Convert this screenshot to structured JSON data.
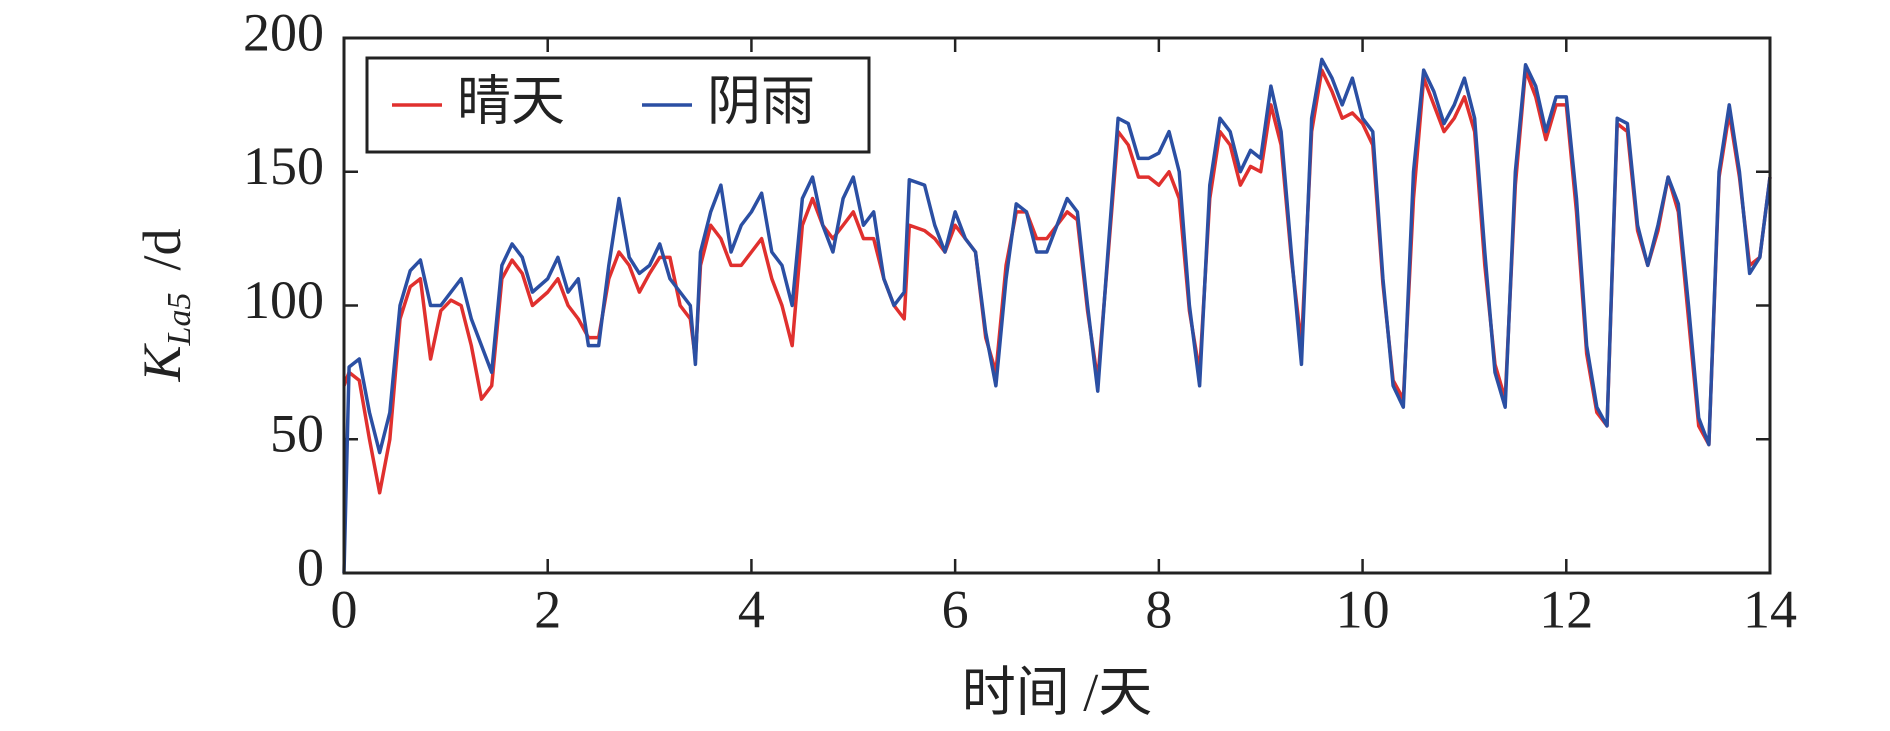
{
  "chart_data": {
    "type": "line",
    "x_label": "时间 /天",
    "y_label": {
      "symbol": "K",
      "subscript": "La5",
      "unit": "/d"
    },
    "legend": "top-left",
    "grid": false,
    "xlim": [
      0,
      14
    ],
    "xticks": [
      0,
      2,
      4,
      6,
      8,
      10,
      12,
      14
    ],
    "ylim": [
      0,
      200
    ],
    "yticks": [
      0,
      50,
      100,
      150,
      200
    ],
    "x": [
      0,
      0.05,
      0.15,
      0.25,
      0.35,
      0.45,
      0.55,
      0.65,
      0.75,
      0.85,
      0.95,
      1.05,
      1.15,
      1.25,
      1.35,
      1.45,
      1.55,
      1.65,
      1.75,
      1.85,
      2.0,
      2.1,
      2.2,
      2.3,
      2.4,
      2.5,
      2.6,
      2.7,
      2.8,
      2.9,
      3.0,
      3.1,
      3.2,
      3.3,
      3.4,
      3.45,
      3.5,
      3.6,
      3.7,
      3.8,
      3.9,
      4.0,
      4.1,
      4.2,
      4.3,
      4.4,
      4.5,
      4.6,
      4.7,
      4.8,
      4.9,
      5.0,
      5.1,
      5.2,
      5.3,
      5.4,
      5.5,
      5.55,
      5.7,
      5.8,
      5.9,
      6.0,
      6.1,
      6.2,
      6.3,
      6.4,
      6.5,
      6.6,
      6.7,
      6.8,
      6.9,
      7.0,
      7.1,
      7.2,
      7.3,
      7.4,
      7.5,
      7.6,
      7.7,
      7.8,
      7.9,
      8.0,
      8.1,
      8.2,
      8.3,
      8.4,
      8.5,
      8.6,
      8.7,
      8.8,
      8.9,
      9.0,
      9.1,
      9.2,
      9.3,
      9.4,
      9.5,
      9.6,
      9.7,
      9.8,
      9.9,
      10.0,
      10.1,
      10.2,
      10.3,
      10.4,
      10.5,
      10.6,
      10.7,
      10.8,
      10.9,
      11.0,
      11.1,
      11.2,
      11.3,
      11.4,
      11.5,
      11.6,
      11.7,
      11.8,
      11.9,
      12.0,
      12.1,
      12.2,
      12.3,
      12.4,
      12.5,
      12.6,
      12.7,
      12.8,
      12.9,
      13.0,
      13.1,
      13.2,
      13.3,
      13.4,
      13.5,
      13.6,
      13.7,
      13.8,
      13.9,
      14.0
    ],
    "series": [
      {
        "name": "晴天",
        "color": "#e0302e",
        "values": [
          70,
          75,
          72,
          50,
          30,
          50,
          95,
          107,
          110,
          80,
          98,
          102,
          100,
          85,
          65,
          70,
          110,
          117,
          112,
          100,
          105,
          110,
          100,
          95,
          88,
          88,
          110,
          120,
          115,
          105,
          112,
          118,
          118,
          100,
          95,
          80,
          115,
          130,
          125,
          115,
          115,
          120,
          125,
          110,
          100,
          85,
          130,
          140,
          130,
          125,
          130,
          135,
          125,
          125,
          110,
          100,
          95,
          130,
          128,
          125,
          120,
          130,
          125,
          120,
          88,
          75,
          115,
          135,
          135,
          125,
          125,
          130,
          135,
          132,
          98,
          72,
          118,
          165,
          160,
          148,
          148,
          145,
          150,
          140,
          98,
          75,
          140,
          165,
          160,
          145,
          152,
          150,
          175,
          160,
          118,
          85,
          165,
          188,
          180,
          170,
          172,
          168,
          160,
          108,
          72,
          65,
          140,
          185,
          175,
          165,
          170,
          178,
          165,
          115,
          78,
          65,
          145,
          188,
          178,
          162,
          175,
          175,
          135,
          82,
          60,
          55,
          168,
          165,
          128,
          115,
          128,
          148,
          135,
          95,
          55,
          48,
          148,
          172,
          148,
          115,
          118,
          148
        ]
      },
      {
        "name": "阴雨",
        "color": "#2b4fa3",
        "values": [
          0,
          77,
          80,
          60,
          45,
          60,
          100,
          113,
          117,
          100,
          100,
          105,
          110,
          95,
          85,
          75,
          115,
          123,
          118,
          105,
          110,
          118,
          105,
          110,
          85,
          85,
          115,
          140,
          118,
          112,
          115,
          123,
          110,
          105,
          100,
          78,
          120,
          135,
          145,
          120,
          130,
          135,
          142,
          120,
          115,
          100,
          140,
          148,
          130,
          120,
          140,
          148,
          130,
          135,
          110,
          100,
          105,
          147,
          145,
          130,
          120,
          135,
          125,
          120,
          90,
          70,
          110,
          138,
          135,
          120,
          120,
          130,
          140,
          135,
          100,
          68,
          120,
          170,
          168,
          155,
          155,
          157,
          165,
          150,
          100,
          70,
          145,
          170,
          165,
          150,
          158,
          155,
          182,
          165,
          120,
          78,
          170,
          192,
          185,
          175,
          185,
          170,
          165,
          110,
          70,
          62,
          150,
          188,
          180,
          168,
          175,
          185,
          170,
          120,
          75,
          62,
          150,
          190,
          182,
          165,
          178,
          178,
          140,
          85,
          62,
          55,
          170,
          168,
          130,
          115,
          130,
          148,
          138,
          100,
          58,
          48,
          150,
          175,
          150,
          112,
          118,
          148
        ]
      }
    ]
  }
}
